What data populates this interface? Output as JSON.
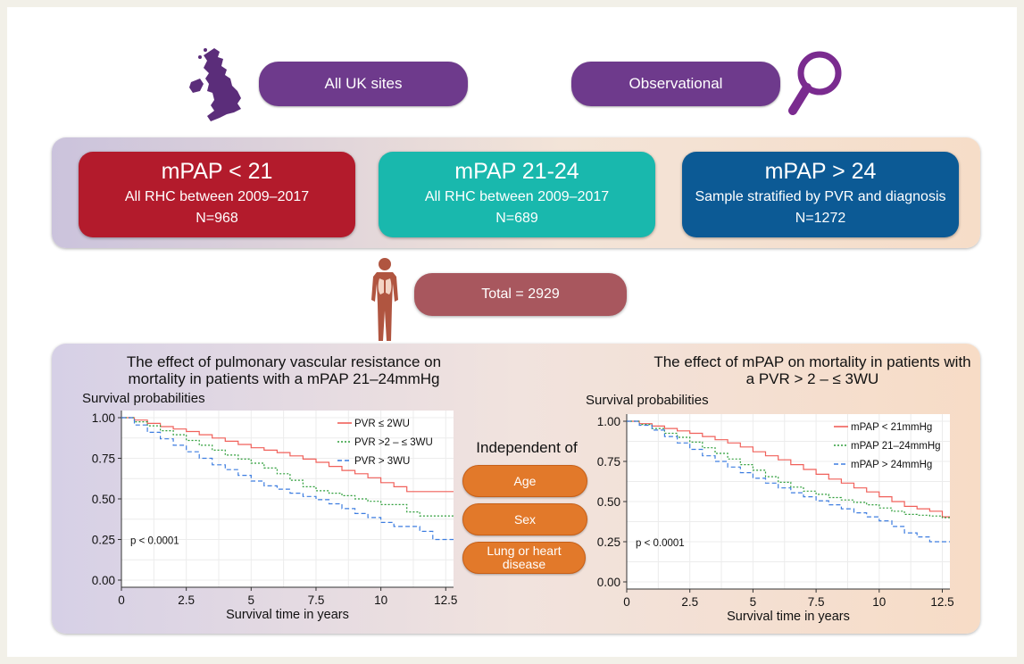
{
  "top": {
    "site_label": "All UK sites",
    "design_label": "Observational"
  },
  "icons": {
    "map": "uk-map-icon",
    "magnifier": "magnifier-icon",
    "body": "human-body-lungs-icon"
  },
  "groups": [
    {
      "heading": "mPAP < 21",
      "line1": "All RHC between 2009–2017",
      "line2": "N=968",
      "color": "#b31b2c"
    },
    {
      "heading": "mPAP 21-24",
      "line1": "All RHC between 2009–2017",
      "line2": "N=689",
      "color": "#19b8ad"
    },
    {
      "heading": "mPAP > 24",
      "line1": "Sample stratified by PVR and diagnosis",
      "line2": "N=1272",
      "color": "#0c5a95"
    }
  ],
  "total_label": "Total = 2929",
  "independent": {
    "title": "Independent of",
    "items": [
      "Age",
      "Sex",
      "Lung or heart disease"
    ]
  },
  "chart_data": [
    {
      "type": "line",
      "title": "The effect of pulmonary vascular resistance on mortality in patients with a mPAP 21–24mmHg",
      "xlabel": "Survival time in years",
      "ylabel": "Survival probabilities",
      "xlim": [
        0,
        12.8
      ],
      "ylim": [
        0,
        1
      ],
      "x_ticks": [
        "0",
        "2.5",
        "5",
        "7.5",
        "10",
        "12.5"
      ],
      "y_ticks": [
        "0.00",
        "0.25",
        "0.50",
        "0.75",
        "1.00"
      ],
      "annotation": "p < 0.0001",
      "legend_position": "top-right",
      "series": [
        {
          "name": "PVR ≤ 2WU",
          "color": "#f0605a",
          "dash": "solid",
          "x": [
            0,
            0.5,
            1,
            1.5,
            2,
            2.5,
            3,
            3.5,
            4,
            4.5,
            5,
            5.5,
            6,
            6.5,
            7,
            7.5,
            8,
            8.5,
            9,
            9.5,
            10,
            10.5,
            11,
            12.8
          ],
          "y": [
            1.0,
            0.985,
            0.965,
            0.945,
            0.93,
            0.915,
            0.895,
            0.875,
            0.855,
            0.835,
            0.815,
            0.8,
            0.785,
            0.765,
            0.745,
            0.725,
            0.7,
            0.675,
            0.655,
            0.63,
            0.6,
            0.575,
            0.545,
            0.545
          ]
        },
        {
          "name": "PVR >2 – ≤ 3WU",
          "color": "#2e9e3a",
          "dash": "dot",
          "x": [
            0,
            0.5,
            1,
            1.5,
            2,
            2.5,
            3,
            3.5,
            4,
            4.5,
            5,
            5.5,
            6,
            6.5,
            7,
            7.5,
            8,
            8.5,
            9,
            9.5,
            10,
            11,
            11.5,
            12.8
          ],
          "y": [
            1.0,
            0.975,
            0.95,
            0.92,
            0.895,
            0.86,
            0.83,
            0.8,
            0.77,
            0.745,
            0.72,
            0.69,
            0.655,
            0.615,
            0.575,
            0.55,
            0.535,
            0.52,
            0.5,
            0.485,
            0.465,
            0.42,
            0.395,
            0.395
          ]
        },
        {
          "name": "PVR > 3WU",
          "color": "#3d7de0",
          "dash": "dash",
          "x": [
            0,
            0.5,
            1,
            1.5,
            2,
            2.5,
            3,
            3.5,
            4,
            4.5,
            5,
            5.5,
            6,
            6.5,
            7,
            7.5,
            8,
            8.5,
            9,
            9.5,
            10,
            10.5,
            11,
            11.5,
            12,
            12.8
          ],
          "y": [
            1.0,
            0.955,
            0.91,
            0.87,
            0.83,
            0.79,
            0.75,
            0.71,
            0.68,
            0.645,
            0.61,
            0.58,
            0.56,
            0.535,
            0.515,
            0.495,
            0.47,
            0.44,
            0.41,
            0.385,
            0.355,
            0.33,
            0.33,
            0.3,
            0.25,
            0.25
          ]
        }
      ]
    },
    {
      "type": "line",
      "title": "The effect of mPAP on mortality in patients with a PVR > 2 – ≤ 3WU",
      "xlabel": "Survival time in years",
      "ylabel": "Survival probabilities",
      "xlim": [
        0,
        12.8
      ],
      "ylim": [
        0,
        1
      ],
      "x_ticks": [
        "0",
        "2.5",
        "5",
        "7.5",
        "10",
        "12.5"
      ],
      "y_ticks": [
        "0.00",
        "0.25",
        "0.50",
        "0.75",
        "1.00"
      ],
      "annotation": "p < 0.0001",
      "legend_position": "top-right",
      "series": [
        {
          "name": "mPAP < 21mmHg",
          "color": "#f0605a",
          "dash": "solid",
          "x": [
            0,
            0.5,
            1,
            1.5,
            2,
            2.5,
            3,
            3.5,
            4,
            4.5,
            5,
            5.5,
            6,
            6.5,
            7,
            7.5,
            8,
            8.5,
            9,
            9.5,
            10,
            10.5,
            11,
            11.5,
            12,
            12.5,
            12.8
          ],
          "y": [
            1.0,
            0.985,
            0.97,
            0.955,
            0.94,
            0.925,
            0.905,
            0.885,
            0.865,
            0.84,
            0.81,
            0.785,
            0.76,
            0.73,
            0.7,
            0.67,
            0.64,
            0.615,
            0.585,
            0.56,
            0.53,
            0.5,
            0.47,
            0.455,
            0.44,
            0.405,
            0.405
          ]
        },
        {
          "name": "mPAP 21–24mmHg",
          "color": "#2e9e3a",
          "dash": "dot",
          "x": [
            0,
            0.5,
            1,
            1.5,
            2,
            2.5,
            3,
            3.5,
            4,
            4.5,
            5,
            5.5,
            6,
            6.5,
            7,
            7.5,
            8,
            8.5,
            9,
            9.5,
            10,
            10.5,
            11,
            11.5,
            12,
            12.5,
            12.8
          ],
          "y": [
            1.0,
            0.98,
            0.955,
            0.925,
            0.9,
            0.87,
            0.835,
            0.8,
            0.765,
            0.73,
            0.695,
            0.655,
            0.62,
            0.59,
            0.565,
            0.545,
            0.525,
            0.51,
            0.495,
            0.48,
            0.46,
            0.44,
            0.42,
            0.415,
            0.41,
            0.4,
            0.395
          ]
        },
        {
          "name": "mPAP > 24mmHg",
          "color": "#3d7de0",
          "dash": "dash",
          "x": [
            0,
            0.5,
            1,
            1.5,
            2,
            2.5,
            3,
            3.5,
            4,
            4.5,
            5,
            5.5,
            6,
            6.5,
            7,
            7.5,
            8,
            8.5,
            9,
            9.5,
            10,
            10.5,
            11,
            11.5,
            12,
            12.8
          ],
          "y": [
            1.0,
            0.975,
            0.945,
            0.905,
            0.865,
            0.825,
            0.785,
            0.75,
            0.715,
            0.68,
            0.645,
            0.615,
            0.585,
            0.555,
            0.53,
            0.505,
            0.48,
            0.455,
            0.43,
            0.405,
            0.38,
            0.345,
            0.305,
            0.28,
            0.25,
            0.25
          ]
        }
      ]
    }
  ]
}
